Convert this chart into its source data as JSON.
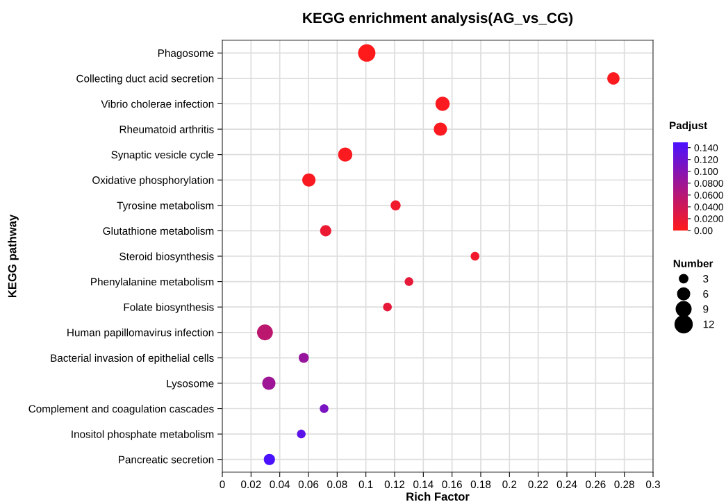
{
  "chart_data": {
    "type": "bubble",
    "orientation": "horizontal",
    "title": "KEGG enrichment analysis(AG_vs_CG)",
    "xlabel": "Rich Factor",
    "ylabel": "KEGG pathway",
    "clabel": "Padjust",
    "legend_title": "Number",
    "categories": [
      "Phagosome",
      "Collecting duct acid secretion",
      "Vibrio cholerae infection",
      "Rheumatoid arthritis",
      "Synaptic vesicle cycle",
      "Oxidative phosphorylation",
      "Tyrosine metabolism",
      "Glutathione metabolism",
      "Steroid biosynthesis",
      "Phenylalanine metabolism",
      "Folate biosynthesis",
      "Human papillomavirus infection",
      "Bacterial invasion of epithelial cells",
      "Lysosome",
      "Complement and coagulation cascades",
      "Inositol phosphate metabolism",
      "Pancreatic secretion"
    ],
    "values": [
      0.1006,
      0.2724,
      0.1534,
      0.1519,
      0.0856,
      0.0603,
      0.1207,
      0.072,
      0.176,
      0.13,
      0.115,
      0.0297,
      0.0567,
      0.0324,
      0.0709,
      0.055,
      0.0328
    ],
    "sizes": [
      12,
      6,
      8,
      7,
      8,
      7,
      4,
      5,
      3,
      3,
      3,
      10,
      4,
      7,
      3,
      3,
      5
    ],
    "size_legend": [
      3,
      6,
      9,
      12
    ],
    "cvalues": [
      0.001,
      0.003,
      0.004,
      0.004,
      0.004,
      0.005,
      0.012,
      0.016,
      0.012,
      0.02,
      0.02,
      0.055,
      0.085,
      0.08,
      0.11,
      0.135,
      0.149
    ],
    "clim": [
      0,
      0.149
    ],
    "cticks": [
      {
        "value": 0,
        "label": "0.00"
      },
      {
        "value": 0.02,
        "label": "0.0200"
      },
      {
        "value": 0.04,
        "label": "0.0400"
      },
      {
        "value": 0.06,
        "label": "0.0600"
      },
      {
        "value": 0.08,
        "label": "0.0800"
      },
      {
        "value": 0.1,
        "label": "0.100"
      },
      {
        "value": 0.12,
        "label": "0.120"
      },
      {
        "value": 0.14,
        "label": "0.140"
      }
    ],
    "xlim": [
      0,
      0.3
    ],
    "xticks": [
      0,
      0.02,
      0.04,
      0.06,
      0.08,
      0.1,
      0.12,
      0.14,
      0.16,
      0.18,
      0.2,
      0.22,
      0.24,
      0.26,
      0.28,
      0.3
    ],
    "grid": true
  }
}
